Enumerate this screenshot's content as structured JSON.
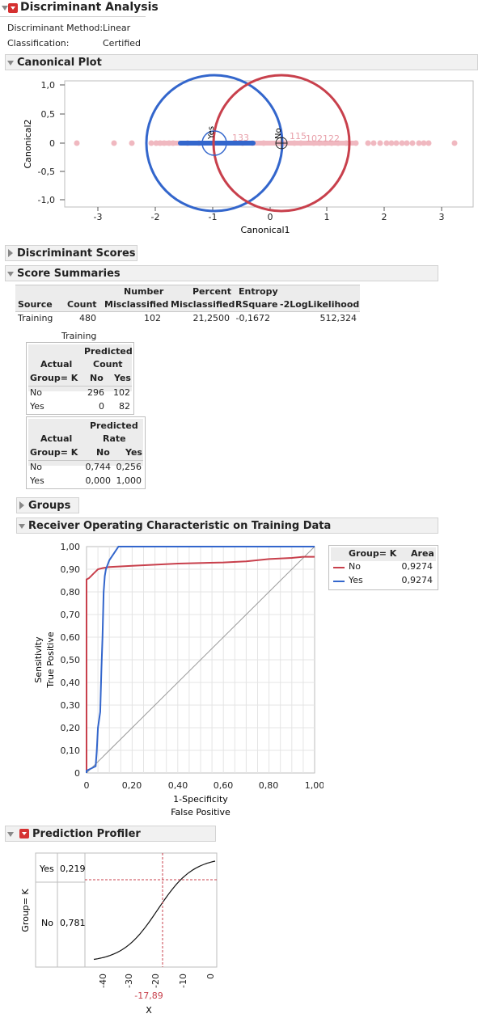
{
  "report": {
    "title": "Discriminant Analysis",
    "method_label": "Discriminant Method:",
    "method_value": "Linear",
    "classification_label": "Classification:",
    "classification_value": "Certified"
  },
  "sections": {
    "canonical_plot": "Canonical Plot",
    "discriminant_scores": "Discriminant Scores",
    "score_summaries": "Score Summaries",
    "groups": "Groups",
    "roc": "Receiver Operating Characteristic on Training Data",
    "profiler": "Prediction Profiler"
  },
  "canonical": {
    "x_label": "Canonical1",
    "y_label": "Canonical2",
    "x_ticks": [
      "-3",
      "-2",
      "-1",
      "0",
      "1",
      "2",
      "3"
    ],
    "y_ticks": [
      "1,0",
      "0,5",
      "0",
      "-0,5",
      "-1,0"
    ],
    "group_labels": [
      "Yes",
      "No"
    ],
    "point_labels": [
      "133",
      "115",
      "102",
      "122"
    ]
  },
  "score_summary": {
    "headers": {
      "source": "Source",
      "count": "Count",
      "num_mis_1": "Number",
      "num_mis_2": "Misclassified",
      "pct_mis_1": "Percent",
      "pct_mis_2": "Misclassified",
      "entropy_1": "Entropy",
      "entropy_2": "RSquare",
      "loglik": "-2LogLikelihood"
    },
    "row": {
      "source": "Training",
      "count": "480",
      "num_mis": "102",
      "pct_mis": "21,2500",
      "entropy": "-0,1672",
      "loglik": "512,324"
    },
    "training_label": "Training"
  },
  "count_table": {
    "actual": "Actual",
    "group": "Group= K",
    "predicted": "Predicted",
    "metric": "Count",
    "col_no": "No",
    "col_yes": "Yes",
    "rows": [
      {
        "label": "No",
        "no": "296",
        "yes": "102"
      },
      {
        "label": "Yes",
        "no": "0",
        "yes": "82"
      }
    ]
  },
  "rate_table": {
    "actual": "Actual",
    "group": "Group= K",
    "predicted": "Predicted",
    "metric": "Rate",
    "col_no": "No",
    "col_yes": "Yes",
    "rows": [
      {
        "label": "No",
        "no": "0,744",
        "yes": "0,256"
      },
      {
        "label": "Yes",
        "no": "0,000",
        "yes": "1,000"
      }
    ]
  },
  "roc_plot": {
    "y_label_1": "Sensitivity",
    "y_label_2": "True Positive",
    "x_label_1": "1-Specificity",
    "x_label_2": "False Positive",
    "y_ticks": [
      "1,00",
      "0,90",
      "0,80",
      "0,70",
      "0,60",
      "0,50",
      "0,40",
      "0,30",
      "0,20",
      "0,10",
      "0"
    ],
    "x_ticks": [
      "0",
      "0,20",
      "0,40",
      "0,60",
      "0,80",
      "1,00"
    ]
  },
  "roc_legend": {
    "group_header": "Group= K",
    "area_header": "Area",
    "rows": [
      {
        "label": "No",
        "area": "0,9274",
        "color": "#c8404c"
      },
      {
        "label": "Yes",
        "area": "0,9274",
        "color": "#3366cc"
      }
    ]
  },
  "profiler_plot": {
    "group_axis_label": "Group= K",
    "yes_label": "Yes",
    "yes_value": "0,219",
    "no_label": "No",
    "no_value": "0,781",
    "x_ticks": [
      "-40",
      "-30",
      "-20",
      "-10",
      "0"
    ],
    "current_x": "-17,89",
    "x_label": "X"
  },
  "colors": {
    "red": "#c8404c",
    "blue": "#3366cc",
    "pink": "#f0b8c0"
  }
}
